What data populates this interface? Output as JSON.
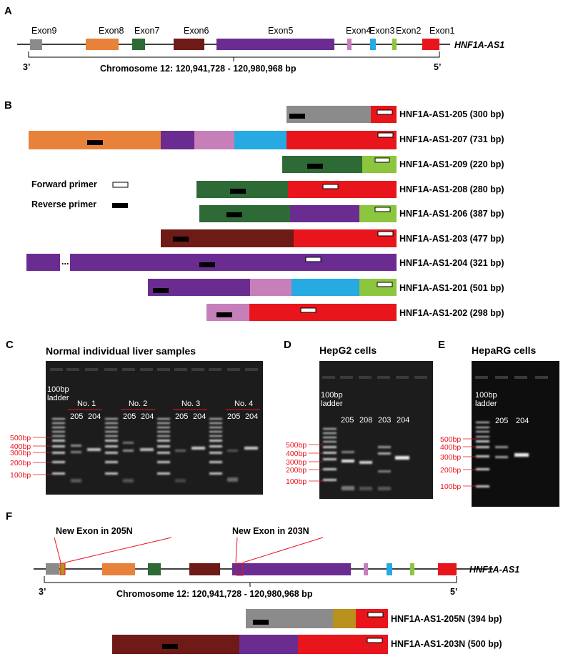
{
  "colors": {
    "exon1": "#e8161c",
    "exon2": "#8cc63f",
    "exon3": "#27a9e1",
    "exon4": "#c77fba",
    "exon5": "#6a2c91",
    "exon6": "#6e1a17",
    "exon7": "#2d6a35",
    "exon8": "#e8823a",
    "exon9": "#8b8b8b",
    "new_exon": "#b8921c",
    "label_red": "#e8141c",
    "gel_bg": "#1c1c1c"
  },
  "panel_a": {
    "letter": "A",
    "exons": [
      "Exon9",
      "Exon8",
      "Exon7",
      "Exon6",
      "Exon5",
      "Exon4",
      "Exon3",
      "Exon2",
      "Exon1"
    ],
    "gene": "HNF1A-AS1",
    "end_left": "3’",
    "end_right": "5’",
    "coords": "Chromosome 12: 120,941,728 - 120,980,968 bp"
  },
  "panel_b": {
    "letter": "B",
    "legend_forward": "Forward primer",
    "legend_reverse": "Reverse primer",
    "ellipsis": "...",
    "transcripts": [
      {
        "name": "HNF1A-AS1-205 (300 bp)"
      },
      {
        "name": "HNF1A-AS1-207 (731 bp)"
      },
      {
        "name": "HNF1A-AS1-209 (220 bp)"
      },
      {
        "name": "HNF1A-AS1-208 (280 bp)"
      },
      {
        "name": "HNF1A-AS1-206 (387 bp)"
      },
      {
        "name": "HNF1A-AS1-203 (477 bp)"
      },
      {
        "name": "HNF1A-AS1-204 (321 bp)"
      },
      {
        "name": "HNF1A-AS1-201 (501 bp)"
      },
      {
        "name": "HNF1A-AS1-202 (298 bp)"
      }
    ]
  },
  "panel_c": {
    "letter": "C",
    "title": "Normal individual liver samples",
    "ladder_label": "100bp ladder",
    "samples": [
      "No. 1",
      "No. 2",
      "No. 3",
      "No. 4"
    ],
    "lanes": [
      "205",
      "204"
    ],
    "markers": [
      "500bp",
      "400bp",
      "300bp",
      "200bp",
      "100bp"
    ]
  },
  "panel_d": {
    "letter": "D",
    "title": "HepG2 cells",
    "ladder_label": "100bp ladder",
    "lanes": [
      "205",
      "208",
      "203",
      "204"
    ],
    "markers": [
      "500bp",
      "400bp",
      "300bp",
      "200bp",
      "100bp"
    ]
  },
  "panel_e": {
    "letter": "E",
    "title": "HepaRG cells",
    "ladder_label": "100bp ladder",
    "lanes": [
      "205",
      "204"
    ],
    "markers": [
      "500bp",
      "400bp",
      "300bp",
      "200bp",
      "100bp"
    ]
  },
  "panel_f": {
    "letter": "F",
    "new_exon_205": "New Exon in 205N",
    "new_exon_203": "New Exon in 203N",
    "gene": "HNF1A-AS1",
    "end_left": "3’",
    "end_right": "5’",
    "coords": "Chromosome 12: 120,941,728 - 120,980,968 bp",
    "transcripts": [
      {
        "name": "HNF1A-AS1-205N (394 bp)"
      },
      {
        "name": "HNF1A-AS1-203N (500 bp)"
      }
    ]
  }
}
